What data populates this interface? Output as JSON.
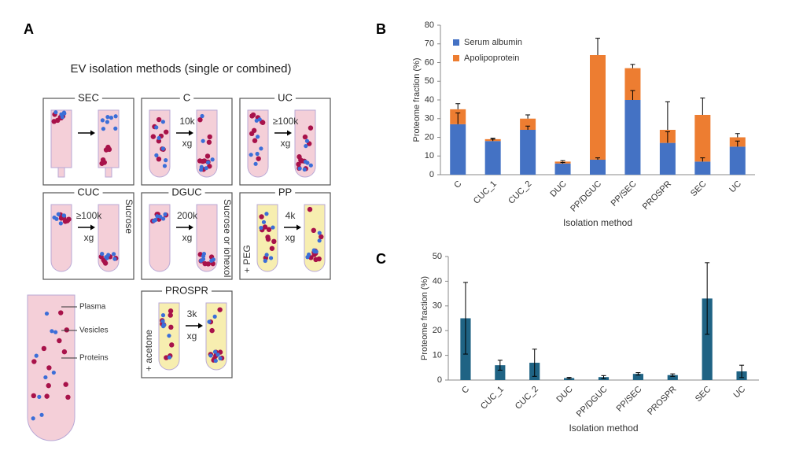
{
  "panel_labels": [
    "A",
    "B",
    "C"
  ],
  "panel_a": {
    "title": "EV isolation methods (single or combined)",
    "methods": [
      {
        "name": "SEC"
      },
      {
        "name": "C",
        "speed": "10k",
        "unit": "xg"
      },
      {
        "name": "UC",
        "speed": "≥100k",
        "unit": "xg"
      },
      {
        "name": "CUC",
        "speed": "≥100k",
        "unit": "xg",
        "medium": "Sucrose"
      },
      {
        "name": "DGUC",
        "speed": "200k",
        "unit": "xg",
        "medium": "Sucrose or iohexol"
      },
      {
        "name": "PP",
        "speed": "4k",
        "unit": "xg",
        "additive": "+ PEG"
      },
      {
        "name": "PROSPR",
        "speed": "3k",
        "unit": "xg",
        "additive": "+ acetone"
      }
    ],
    "legend": [
      "Plasma",
      "Vesicles",
      "Proteins"
    ]
  },
  "chart_data": [
    {
      "type": "stacked_bar",
      "ylabel": "Proteome fraction (%)",
      "xlabel": "Isolation method",
      "categories": [
        "C",
        "CUC_1",
        "CUC_2",
        "DUC",
        "PP/DGUC",
        "PP/SEC",
        "PROSPR",
        "SEC",
        "UC"
      ],
      "series": [
        {
          "name": "Serum albumin",
          "color": "#4472c4",
          "values": [
            27,
            18,
            24,
            6,
            8,
            40,
            17,
            7,
            15
          ],
          "errors": [
            6,
            1,
            2,
            0.5,
            1,
            5,
            6,
            2,
            3
          ]
        },
        {
          "name": "Apolipoprotein",
          "color": "#ed7d31",
          "values": [
            8,
            1,
            6,
            1,
            56,
            17,
            7,
            25,
            5
          ],
          "errors": [
            3,
            0.5,
            2,
            0.5,
            9,
            2,
            15,
            9,
            2
          ]
        }
      ],
      "ylim": [
        0,
        80
      ],
      "yticks": [
        0,
        10,
        20,
        30,
        40,
        50,
        60,
        70,
        80
      ],
      "legend": "upper left"
    },
    {
      "type": "bar",
      "ylabel": "Proteome fraction (%)",
      "xlabel": "Isolation method",
      "categories": [
        "C",
        "CUC_1",
        "CUC_2",
        "DUC",
        "PP/DGUC",
        "PP/SEC",
        "PROSPR",
        "SEC",
        "UC"
      ],
      "values": [
        25,
        6,
        7,
        0.8,
        1.2,
        2.5,
        2,
        33,
        3.5
      ],
      "errors": [
        14.5,
        2,
        5.5,
        0.3,
        0.6,
        0.5,
        0.5,
        14.5,
        2.5
      ],
      "color": "#1f6384",
      "ylim": [
        0,
        50
      ],
      "yticks": [
        0,
        10,
        20,
        30,
        40,
        50
      ]
    }
  ]
}
